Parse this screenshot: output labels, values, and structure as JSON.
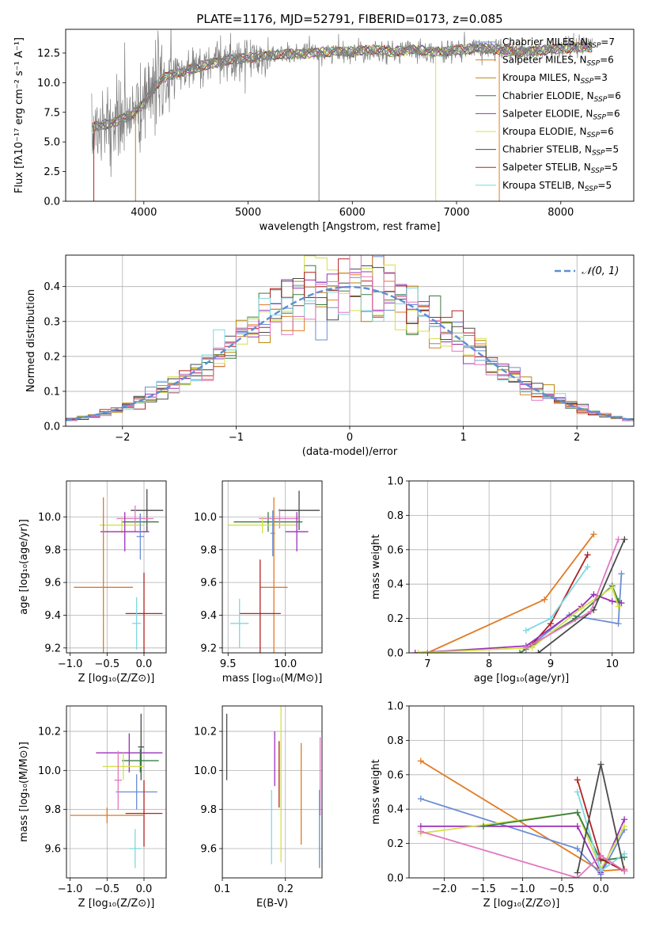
{
  "colors": {
    "Chabrier MILES": "#6b8dd6",
    "Salpeter MILES": "#e07b24",
    "Kroupa MILES": "#b8860b",
    "Chabrier ELODIE": "#3a7d44",
    "Salpeter ELODIE": "#9b30b8",
    "Kroupa ELODIE": "#d4e04a",
    "Chabrier STELIB": "#4a4a4a",
    "Salpeter STELIB": "#b22222",
    "Kroupa STELIB": "#7fd8e0",
    "extra_pink": "#e377c2",
    "data": "#808080",
    "normal": "#5b8fd6"
  },
  "chart_data": [
    {
      "id": "spectrum",
      "type": "line",
      "title": "PLATE=1176, MJD=52791, FIBERID=0173, z=0.085",
      "xlabel": "wavelength [Angstrom, rest frame]",
      "ylabel": "Flux [fλ10⁻¹⁷ erg cm⁻² s⁻¹ A⁻¹]",
      "xlim": [
        3250,
        8700
      ],
      "ylim": [
        0,
        14.5
      ],
      "xticks": [
        4000,
        5000,
        6000,
        7000,
        8000
      ],
      "yticks": [
        0.0,
        2.5,
        5.0,
        7.5,
        10.0,
        12.5
      ],
      "ytick_labels": [
        "0.0",
        "2.5",
        "5.0",
        "7.5",
        "10.0",
        "12.5"
      ],
      "legend": [
        {
          "base": "Chabrier MILES, N",
          "sub": "SSP",
          "tail": "=7"
        },
        {
          "base": "Salpeter MILES, N",
          "sub": "SSP",
          "tail": "=6"
        },
        {
          "base": "Kroupa MILES, N",
          "sub": "SSP",
          "tail": "=3"
        },
        {
          "base": "Chabrier ELODIE, N",
          "sub": "SSP",
          "tail": "=6"
        },
        {
          "base": "Salpeter ELODIE, N",
          "sub": "SSP",
          "tail": "=6"
        },
        {
          "base": "Kroupa ELODIE, N",
          "sub": "SSP",
          "tail": "=6"
        },
        {
          "base": "Chabrier STELIB, N",
          "sub": "SSP",
          "tail": "=5"
        },
        {
          "base": "Salpeter STELIB, N",
          "sub": "SSP",
          "tail": "=5"
        },
        {
          "base": "Kroupa STELIB, N",
          "sub": "SSP",
          "tail": "=5"
        }
      ],
      "legend_placement": "right",
      "continuum": [
        [
          3500,
          6.2
        ],
        [
          3700,
          6.6
        ],
        [
          3900,
          7.4
        ],
        [
          4000,
          8.2
        ],
        [
          4100,
          9.6
        ],
        [
          4200,
          10.5
        ],
        [
          4400,
          11.0
        ],
        [
          4600,
          11.5
        ],
        [
          4800,
          11.9
        ],
        [
          5000,
          12.1
        ],
        [
          5200,
          12.3
        ],
        [
          5400,
          12.4
        ],
        [
          5600,
          12.5
        ],
        [
          5800,
          12.6
        ],
        [
          6000,
          12.6
        ],
        [
          6200,
          12.8
        ],
        [
          6400,
          12.6
        ],
        [
          6600,
          12.8
        ],
        [
          6800,
          12.6
        ],
        [
          7000,
          12.7
        ],
        [
          7200,
          12.9
        ],
        [
          7400,
          12.8
        ],
        [
          7600,
          12.6
        ],
        [
          7800,
          12.7
        ],
        [
          8000,
          12.9
        ],
        [
          8200,
          13.0
        ],
        [
          8300,
          13.0
        ]
      ]
    },
    {
      "id": "residuals",
      "type": "histogram",
      "xlabel": "(data-model)/error",
      "ylabel": "Normed distribution",
      "xlim": [
        -2.5,
        2.5
      ],
      "ylim": [
        0,
        0.49
      ],
      "xticks": [
        -2,
        -1,
        0,
        1,
        2
      ],
      "xtick_labels": [
        "−2",
        "−1",
        "0",
        "1",
        "2"
      ],
      "yticks": [
        0.0,
        0.1,
        0.2,
        0.3,
        0.4
      ],
      "ytick_labels": [
        "0.0",
        "0.1",
        "0.2",
        "0.3",
        "0.4"
      ],
      "legend": "𝒩(0, 1)",
      "legend_placement": "top-right",
      "grid": true
    },
    {
      "id": "age_vs_Z",
      "type": "errorbar",
      "xlabel": "Z [log₁₀(Z/Z⊙)]",
      "ylabel": "age  [log₁₀(age/yr)]",
      "xlim": [
        -1.05,
        0.3
      ],
      "ylim": [
        9.17,
        10.22
      ],
      "xticks": [
        -1.0,
        -0.5,
        0.0
      ],
      "xtick_labels": [
        "−1.0",
        "−0.5",
        "0.0"
      ],
      "yticks": [
        9.2,
        9.4,
        9.6,
        9.8,
        10.0
      ],
      "ytick_labels": [
        "9.2",
        "9.4",
        "9.6",
        "9.8",
        "10.0"
      ],
      "points": [
        {
          "model": "Chabrier STELIB",
          "x": 0.04,
          "xerr": 0.22,
          "y": 10.04,
          "yerr": 0.13
        },
        {
          "model": "Chabrier ELODIE",
          "x": -0.05,
          "xerr": 0.25,
          "y": 9.97,
          "yerr": 0.05
        },
        {
          "model": "extra_pink",
          "x": -0.12,
          "xerr": 0.25,
          "y": 9.99,
          "yerr": 0.08
        },
        {
          "model": "Kroupa ELODIE",
          "x": -0.3,
          "xerr": 0.3,
          "y": 9.95,
          "yerr": 0.05
        },
        {
          "model": "Salpeter ELODIE",
          "x": -0.26,
          "xerr": 0.33,
          "y": 9.91,
          "yerr": 0.12
        },
        {
          "model": "Chabrier MILES",
          "x": -0.05,
          "xerr": 0.05,
          "y": 9.88,
          "yerr": 0.14
        },
        {
          "model": "Salpeter MILES",
          "x": -0.55,
          "xerr": 0.4,
          "y": 9.57,
          "yerr": 0.55
        },
        {
          "model": "Salpeter STELIB",
          "x": 0.0,
          "xerr": 0.25,
          "y": 9.41,
          "yerr": 0.25
        },
        {
          "model": "Kroupa STELIB",
          "x": -0.1,
          "xerr": 0.06,
          "y": 9.35,
          "yerr": 0.16
        }
      ]
    },
    {
      "id": "age_vs_mass",
      "type": "errorbar",
      "xlabel": "mass [log₁₀(M/M⊙)]",
      "xlim": [
        9.45,
        10.32
      ],
      "ylim": [
        9.17,
        10.22
      ],
      "xticks": [
        9.5,
        10.0
      ],
      "xtick_labels": [
        "9.5",
        "10.0"
      ],
      "yticks": [
        9.2,
        9.4,
        9.6,
        9.8,
        10.0
      ],
      "ytick_labels": [
        "9.2",
        "9.4",
        "9.6",
        "9.8",
        "10.0"
      ],
      "points": [
        {
          "model": "Chabrier STELIB",
          "x": 10.12,
          "xerr": 0.18,
          "y": 10.04,
          "yerr": 0.12
        },
        {
          "model": "Chabrier ELODIE",
          "x": 9.85,
          "xerr": 0.3,
          "y": 9.97,
          "yerr": 0.06
        },
        {
          "model": "extra_pink",
          "x": 9.95,
          "xerr": 0.18,
          "y": 9.99,
          "yerr": 0.06
        },
        {
          "model": "Kroupa ELODIE",
          "x": 9.8,
          "xerr": 0.3,
          "y": 9.95,
          "yerr": 0.05
        },
        {
          "model": "Salpeter ELODIE",
          "x": 10.1,
          "xerr": 0.1,
          "y": 9.91,
          "yerr": 0.12
        },
        {
          "model": "Chabrier MILES",
          "x": 9.89,
          "xerr": 0.02,
          "y": 9.9,
          "yerr": 0.14
        },
        {
          "model": "Salpeter MILES",
          "x": 9.9,
          "xerr": 0.12,
          "y": 9.57,
          "yerr": 0.55
        },
        {
          "model": "Salpeter STELIB",
          "x": 9.78,
          "xerr": 0.18,
          "y": 9.41,
          "yerr": 0.33
        },
        {
          "model": "Kroupa STELIB",
          "x": 9.6,
          "xerr": 0.08,
          "y": 9.35,
          "yerr": 0.15
        }
      ]
    },
    {
      "id": "weight_vs_age",
      "type": "line",
      "xlabel": "age  [log₁₀(age/yr)]",
      "ylabel": "mass weight",
      "xlim": [
        6.7,
        10.35
      ],
      "ylim": [
        0,
        1.0
      ],
      "xticks": [
        7,
        8,
        9,
        10
      ],
      "xtick_labels": [
        "7",
        "8",
        "9",
        "10"
      ],
      "yticks": [
        0.0,
        0.2,
        0.4,
        0.6,
        0.8,
        1.0
      ],
      "ytick_labels": [
        "0.0",
        "0.2",
        "0.4",
        "0.6",
        "0.8",
        "1.0"
      ],
      "grid": true,
      "series": [
        {
          "model": "Salpeter MILES",
          "x": [
            7.0,
            8.9,
            9.7
          ],
          "y": [
            0.0,
            0.31,
            0.69
          ]
        },
        {
          "model": "Chabrier MILES",
          "x": [
            8.6,
            9.3,
            10.1,
            10.15
          ],
          "y": [
            0.02,
            0.22,
            0.17,
            0.46
          ]
        },
        {
          "model": "Salpeter STELIB",
          "x": [
            8.7,
            9.0,
            9.6
          ],
          "y": [
            0.05,
            0.17,
            0.57
          ]
        },
        {
          "model": "Kroupa STELIB",
          "x": [
            8.6,
            9.0,
            9.6
          ],
          "y": [
            0.13,
            0.2,
            0.5
          ]
        },
        {
          "model": "Salpeter ELODIE",
          "x": [
            6.8,
            8.6,
            9.5,
            9.7,
            10.0,
            10.15
          ],
          "y": [
            0.0,
            0.04,
            0.27,
            0.34,
            0.3,
            0.29
          ]
        },
        {
          "model": "Chabrier ELODIE",
          "x": [
            8.5,
            9.4,
            10.0,
            10.1
          ],
          "y": [
            0.0,
            0.2,
            0.39,
            0.3
          ]
        },
        {
          "model": "Kroupa ELODIE",
          "x": [
            6.85,
            8.7,
            9.5,
            10.0,
            10.1
          ],
          "y": [
            0.0,
            0.03,
            0.26,
            0.38,
            0.27
          ]
        },
        {
          "model": "Chabrier STELIB",
          "x": [
            8.8,
            9.7,
            10.2
          ],
          "y": [
            0.0,
            0.25,
            0.66
          ]
        },
        {
          "model": "extra_pink",
          "x": [
            8.6,
            9.65,
            10.1
          ],
          "y": [
            0.03,
            0.24,
            0.66
          ]
        }
      ]
    },
    {
      "id": "mass_vs_Z",
      "type": "errorbar",
      "xlabel": "Z [log₁₀(Z/Z⊙)]",
      "ylabel": "mass [log₁₀(M/M⊙)]",
      "xlim": [
        -1.05,
        0.3
      ],
      "ylim": [
        9.45,
        10.33
      ],
      "xticks": [
        -1.0,
        -0.5,
        0.0
      ],
      "xtick_labels": [
        "−1.0",
        "−0.5",
        "0.0"
      ],
      "yticks": [
        9.6,
        9.8,
        10.0,
        10.2
      ],
      "ytick_labels": [
        "9.6",
        "9.8",
        "10.0",
        "10.2"
      ],
      "points": [
        {
          "model": "Chabrier STELIB",
          "x": -0.04,
          "xerr": 0.04,
          "y": 10.12,
          "yerr": 0.17
        },
        {
          "model": "Salpeter ELODIE",
          "x": -0.2,
          "xerr": 0.45,
          "y": 10.09,
          "yerr": 0.1
        },
        {
          "model": "Chabrier ELODIE",
          "x": -0.05,
          "xerr": 0.25,
          "y": 10.05,
          "yerr": 0.06
        },
        {
          "model": "Kroupa ELODIE",
          "x": -0.28,
          "xerr": 0.28,
          "y": 10.02,
          "yerr": 0.07
        },
        {
          "model": "Chabrier MILES",
          "x": -0.1,
          "xerr": 0.28,
          "y": 9.89,
          "yerr": 0.09
        },
        {
          "model": "extra_pink",
          "x": -0.35,
          "xerr": 0.05,
          "y": 9.95,
          "yerr": 0.15
        },
        {
          "model": "Salpeter STELIB",
          "x": 0.0,
          "xerr": 0.25,
          "y": 9.78,
          "yerr": 0.17
        },
        {
          "model": "Salpeter MILES",
          "x": -0.5,
          "xerr": 0.5,
          "y": 9.77,
          "yerr": 0.04
        },
        {
          "model": "Kroupa STELIB",
          "x": -0.12,
          "xerr": 0.08,
          "y": 9.6,
          "yerr": 0.1
        }
      ]
    },
    {
      "id": "mass_vs_EBV",
      "type": "errorbar",
      "xlabel": "E(B-V)",
      "xlim": [
        0.1,
        0.258
      ],
      "ylim": [
        9.45,
        10.33
      ],
      "xticks": [
        0.1,
        0.2
      ],
      "xtick_labels": [
        "0.1",
        "0.2"
      ],
      "yticks": [
        9.6,
        9.8,
        10.0,
        10.2
      ],
      "ytick_labels": [
        "9.6",
        "9.8",
        "10.0",
        "10.2"
      ],
      "points": [
        {
          "model": "Chabrier STELIB",
          "x": 0.107,
          "y": 10.12,
          "yerr": 0.17
        },
        {
          "model": "Salpeter ELODIE",
          "x": 0.183,
          "y": 10.06,
          "yerr": 0.14
        },
        {
          "model": "Salpeter STELIB",
          "x": 0.19,
          "y": 9.98,
          "yerr": 0.17
        },
        {
          "model": "Kroupa STELIB",
          "x": 0.178,
          "y": 9.71,
          "yerr": 0.19
        },
        {
          "model": "Kroupa ELODIE",
          "x": 0.193,
          "y": 9.95,
          "yerr": 0.42
        },
        {
          "model": "Salpeter MILES",
          "x": 0.225,
          "y": 9.88,
          "yerr": 0.26
        },
        {
          "model": "extra_pink",
          "x": 0.255,
          "y": 9.97,
          "yerr": 0.2
        },
        {
          "model": "Chabrier MILES",
          "x": 0.254,
          "y": 9.7,
          "yerr": 0.2
        }
      ]
    },
    {
      "id": "weight_vs_Z",
      "type": "line",
      "xlabel": "Z [log₁₀(Z/Z⊙)]",
      "ylabel": "mass weight",
      "xlim": [
        -2.45,
        0.42
      ],
      "ylim": [
        0,
        1.0
      ],
      "xticks": [
        -2.0,
        -1.5,
        -1.0,
        -0.5,
        0.0
      ],
      "xtick_labels": [
        "−2.0",
        "−1.5",
        "−1.0",
        "−0.5",
        "0.0"
      ],
      "yticks": [
        0.0,
        0.2,
        0.4,
        0.6,
        0.8,
        1.0
      ],
      "ytick_labels": [
        "0.0",
        "0.2",
        "0.4",
        "0.6",
        "0.8",
        "1.0"
      ],
      "grid": true,
      "series": [
        {
          "model": "Salpeter MILES",
          "x": [
            -2.3,
            0.0,
            0.3
          ],
          "y": [
            0.68,
            0.04,
            0.05
          ]
        },
        {
          "model": "Chabrier MILES",
          "x": [
            -2.3,
            -0.3,
            0.0,
            0.3
          ],
          "y": [
            0.46,
            0.17,
            0.02,
            0.28
          ]
        },
        {
          "model": "Salpeter ELODIE",
          "x": [
            -2.3,
            -0.3,
            0.0,
            0.3
          ],
          "y": [
            0.3,
            0.3,
            0.03,
            0.34
          ]
        },
        {
          "model": "Kroupa ELODIE",
          "x": [
            -2.3,
            -0.3,
            0.0,
            0.3
          ],
          "y": [
            0.26,
            0.38,
            0.05,
            0.3
          ]
        },
        {
          "model": "Chabrier ELODIE",
          "x": [
            -1.5,
            -0.3,
            0.0,
            0.3
          ],
          "y": [
            0.3,
            0.38,
            0.1,
            0.12
          ]
        },
        {
          "model": "Salpeter STELIB",
          "x": [
            -0.3,
            0.0,
            0.3
          ],
          "y": [
            0.57,
            0.11,
            0.04
          ]
        },
        {
          "model": "Kroupa STELIB",
          "x": [
            -0.3,
            0.0,
            0.3
          ],
          "y": [
            0.5,
            0.04,
            0.14
          ]
        },
        {
          "model": "Chabrier STELIB",
          "x": [
            -0.3,
            0.0,
            0.3
          ],
          "y": [
            0.03,
            0.66,
            0.04
          ]
        },
        {
          "model": "extra_pink",
          "x": [
            -2.3,
            -0.3,
            0.0,
            0.3
          ],
          "y": [
            0.27,
            0.0,
            0.13,
            0.04
          ]
        }
      ]
    }
  ]
}
